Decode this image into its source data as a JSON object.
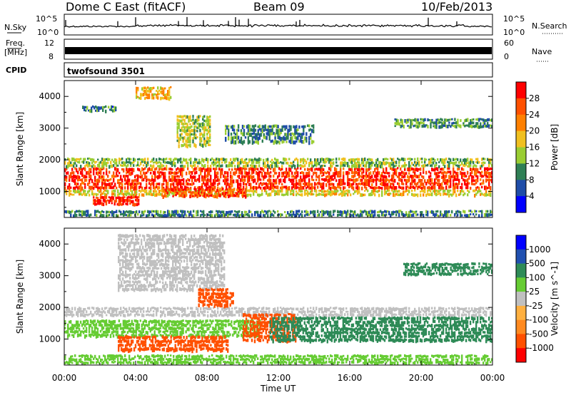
{
  "header": {
    "station": "Dome C East (fitACF)",
    "beam": "Beam 09",
    "date": "10/Feb/2013",
    "cpid_label": "CPID",
    "cpid_value": "twofsound 3501"
  },
  "top_panels": {
    "nsky_label": "N.Sky",
    "nsky_ticks": [
      "10^5",
      "10^0"
    ],
    "nsearch_label": "N.Search",
    "nsearch_ticks": [
      "10^5",
      "10^0"
    ],
    "freq_label_1": "Freq.",
    "freq_label_2": "[MHz]",
    "freq_ticks": [
      "12",
      "8"
    ],
    "nave_label": "Nave",
    "nave_ticks": [
      "60",
      "0"
    ]
  },
  "colors": {
    "power_scale": [
      "#0000ff",
      "#1f4da8",
      "#2f7f55",
      "#9acd32",
      "#f0c020",
      "#ff8000",
      "#ff5000",
      "#ff0000"
    ],
    "velocity_scale": [
      "#ff0000",
      "#ff5000",
      "#ff8a20",
      "#ffb040",
      "#c0c0c0",
      "#66cc33",
      "#2e8b57",
      "#2050b0",
      "#0000ff"
    ]
  },
  "chart_data": [
    {
      "type": "heatmap",
      "title": "",
      "xlabel": "Time UT",
      "ylabel": "Slant Range [km]",
      "x_ticks": [
        "00:00",
        "04:00",
        "08:00",
        "12:00",
        "16:00",
        "20:00",
        "00:00"
      ],
      "y_ticks": [
        1000,
        2000,
        3000,
        4000
      ],
      "xlim": [
        0,
        24
      ],
      "ylim": [
        180,
        4500
      ],
      "colorbar_label": "Power [dB]",
      "colorbar_ticks": [
        4,
        8,
        12,
        16,
        20,
        24,
        28
      ],
      "colorbar_range": [
        0,
        30
      ],
      "regions": [
        {
          "t0": 0.0,
          "t1": 24.0,
          "r0": 1050,
          "r1": 1750,
          "value": 26
        },
        {
          "t0": 0.0,
          "t1": 24.0,
          "r0": 1750,
          "r1": 2050,
          "value": 13
        },
        {
          "t0": 0.0,
          "t1": 24.0,
          "r0": 850,
          "r1": 1050,
          "value": 16
        },
        {
          "t0": 1.6,
          "t1": 4.2,
          "r0": 550,
          "r1": 850,
          "value": 27
        },
        {
          "t0": 5.5,
          "t1": 10.2,
          "r0": 800,
          "r1": 1100,
          "value": 25
        },
        {
          "t0": 6.3,
          "t1": 8.2,
          "r0": 2400,
          "r1": 3400,
          "value": 14
        },
        {
          "t0": 1.0,
          "t1": 3.0,
          "r0": 3500,
          "r1": 3700,
          "value": 8
        },
        {
          "t0": 4.0,
          "t1": 6.0,
          "r0": 3900,
          "r1": 4300,
          "value": 18
        },
        {
          "t0": 9.0,
          "t1": 14.0,
          "r0": 2500,
          "r1": 3100,
          "value": 9
        },
        {
          "t0": 18.5,
          "t1": 24.0,
          "r0": 3000,
          "r1": 3300,
          "value": 10
        },
        {
          "t0": 0.0,
          "t1": 24.0,
          "r0": 200,
          "r1": 400,
          "value": 9
        }
      ]
    },
    {
      "type": "heatmap",
      "title": "",
      "xlabel": "Time UT",
      "ylabel": "Slant Range [km]",
      "x_ticks": [
        "00:00",
        "04:00",
        "08:00",
        "12:00",
        "16:00",
        "20:00",
        "00:00"
      ],
      "y_ticks": [
        1000,
        2000,
        3000,
        4000
      ],
      "xlim": [
        0,
        24
      ],
      "ylim": [
        180,
        4500
      ],
      "colorbar_label": "Velocity [m s^-1]",
      "colorbar_ticks": [
        1000,
        500,
        100,
        25,
        -25,
        -100,
        -500,
        -1000
      ],
      "regions": [
        {
          "t0": 0.0,
          "t1": 24.0,
          "r0": 1700,
          "r1": 2000,
          "value": 0
        },
        {
          "t0": 0.0,
          "t1": 11.0,
          "r0": 1050,
          "r1": 1600,
          "value": 60
        },
        {
          "t0": 3.0,
          "t1": 9.2,
          "r0": 600,
          "r1": 1100,
          "value": -250
        },
        {
          "t0": 10.0,
          "t1": 13.0,
          "r0": 900,
          "r1": 1800,
          "value": -120
        },
        {
          "t0": 11.5,
          "t1": 24.0,
          "r0": 900,
          "r1": 1700,
          "value": 250
        },
        {
          "t0": 3.0,
          "t1": 9.0,
          "r0": 2500,
          "r1": 4300,
          "value": 0
        },
        {
          "t0": 7.5,
          "t1": 9.5,
          "r0": 2000,
          "r1": 2600,
          "value": -200
        },
        {
          "t0": 0.0,
          "t1": 24.0,
          "r0": 200,
          "r1": 500,
          "value": 40
        },
        {
          "t0": 19.0,
          "t1": 24.0,
          "r0": 3000,
          "r1": 3400,
          "value": 150
        }
      ]
    }
  ]
}
